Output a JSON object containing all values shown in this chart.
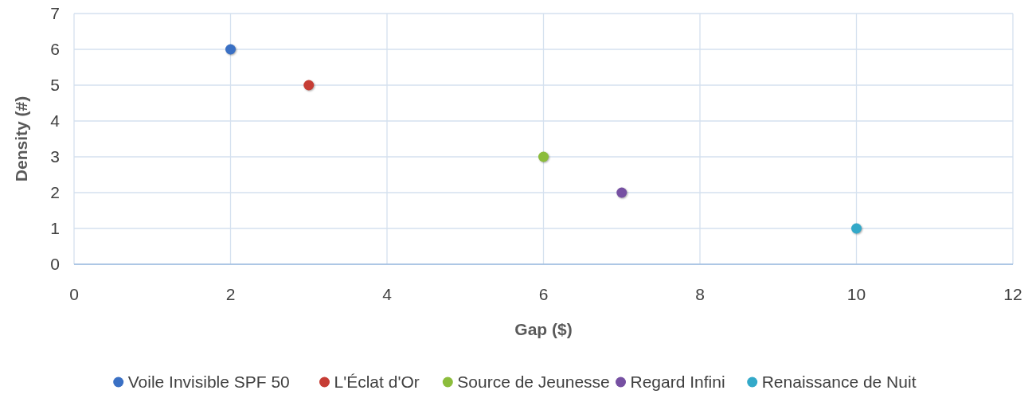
{
  "chart_data": {
    "type": "scatter",
    "xlabel": "Gap ($)",
    "ylabel": "Density (#)",
    "xlim": [
      0,
      12
    ],
    "xticks": [
      0,
      2,
      4,
      6,
      8,
      10,
      12
    ],
    "ylim": [
      0,
      7
    ],
    "yticks": [
      0,
      1,
      2,
      3,
      4,
      5,
      6,
      7
    ],
    "grid": true,
    "legend": "bottom",
    "marker": "circle",
    "series": [
      {
        "name": "Voile Invisible SPF 50",
        "color": "#3a70c4",
        "x": [
          2
        ],
        "values": [
          6
        ]
      },
      {
        "name": "L'Éclat d'Or",
        "color": "#c63d35",
        "x": [
          3
        ],
        "values": [
          5
        ]
      },
      {
        "name": "Source de Jeunesse",
        "color": "#8cbd3c",
        "x": [
          6
        ],
        "values": [
          3
        ]
      },
      {
        "name": "Regard Infini",
        "color": "#7650a2",
        "x": [
          7
        ],
        "values": [
          2
        ]
      },
      {
        "name": "Renaissance de Nuit",
        "color": "#33a9c9",
        "x": [
          10
        ],
        "values": [
          1
        ]
      }
    ]
  }
}
